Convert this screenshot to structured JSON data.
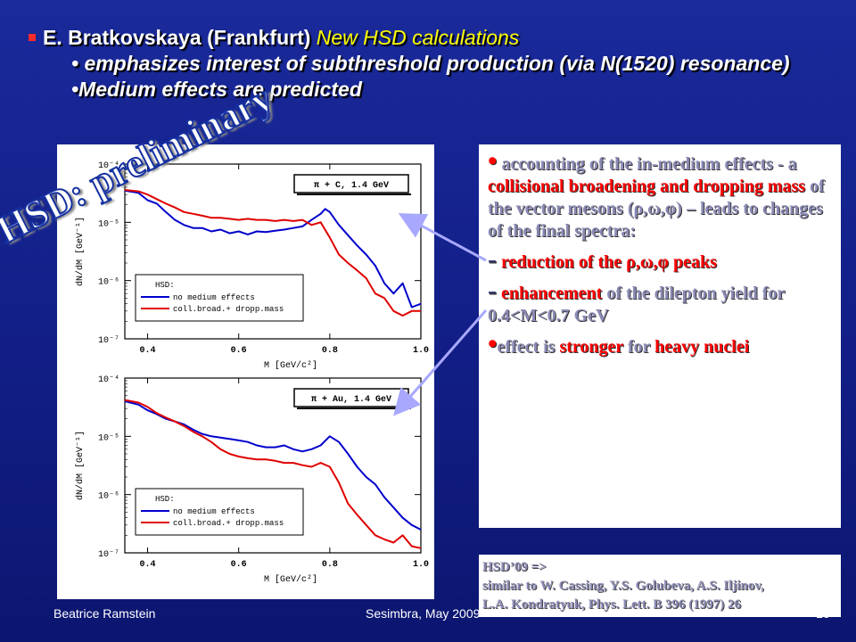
{
  "header": {
    "line1_name": "E. Bratkovskaya (Frankfurt)",
    "line1_sub": "New HSD calculations",
    "line2": "• emphasizes interest of subthreshold production (via  N(1520) resonance)",
    "line3": "•Medium effects are predicted"
  },
  "watermark": "HSD: preliminary",
  "text_panel": {
    "p1_a": "accounting of the in-medium effects - a ",
    "p1_b": "collisional broadening and dropping mass",
    "p1_c": " of the vector mesons (ρ,ω,φ) – leads to changes of the final spectra:",
    "p2_dash": "-",
    "p2": " reduction of the ρ,ω,φ peaks",
    "p3_dash": "-",
    "p3_a": " enhancement",
    "p3_b": " of the dilepton yield for 0.4<M<0.7 GeV",
    "p4_a": "effect is ",
    "p4_b": "stronger",
    "p4_c": " for ",
    "p4_d": "heavy nuclei"
  },
  "reference": {
    "line1": "HSD’09   =>",
    "line2": "similar to W. Cassing, Y.S. Golubeva, A.S. Iljinov,",
    "line3": "L.A. Kondratyuk, Phys. Lett. B 396 (1997) 26"
  },
  "footer": {
    "author": "Beatrice Ramstein",
    "event": "Sesimbra, May 2009",
    "page": "16"
  },
  "colors": {
    "no_medium": "#0000cc",
    "medium": "#e00000"
  },
  "chart_data": [
    {
      "type": "line",
      "title": "π + C, 1.4 GeV",
      "xlabel": "M [GeV/c²]",
      "ylabel": "dN/dM [GeV⁻¹]",
      "xlim": [
        0.35,
        1.0
      ],
      "ylim": [
        1e-07,
        0.0001
      ],
      "yscale": "log",
      "xticks": [
        "0.4",
        "0.6",
        "0.8",
        "1.0"
      ],
      "yticks": [
        "10⁻⁴",
        "10⁻⁵",
        "10⁻⁶",
        "10⁻⁷"
      ],
      "legend_title": "HSD:",
      "series": [
        {
          "name": "no medium effects",
          "color": "#0000cc",
          "x": [
            0.35,
            0.38,
            0.4,
            0.42,
            0.44,
            0.46,
            0.48,
            0.5,
            0.52,
            0.54,
            0.56,
            0.58,
            0.6,
            0.62,
            0.64,
            0.66,
            0.68,
            0.7,
            0.72,
            0.74,
            0.76,
            0.78,
            0.79,
            0.8,
            0.82,
            0.84,
            0.86,
            0.88,
            0.9,
            0.92,
            0.94,
            0.96,
            0.98,
            1.0
          ],
          "y": [
            3.5e-05,
            3.2e-05,
            2.4e-05,
            2.1e-05,
            1.5e-05,
            1.1e-05,
            9e-06,
            8e-06,
            8e-06,
            7e-06,
            7.5e-06,
            6.5e-06,
            7e-06,
            6.2e-06,
            7e-06,
            6.8e-06,
            7.2e-06,
            7.5e-06,
            8e-06,
            8.5e-06,
            1.1e-05,
            1.4e-05,
            1.7e-05,
            1.5e-05,
            9e-06,
            6e-06,
            4e-06,
            2.8e-06,
            1.8e-06,
            9e-07,
            6e-07,
            9e-07,
            3.5e-07,
            4e-07
          ]
        },
        {
          "name": "coll.broad.+ dropp.mass",
          "color": "#e00000",
          "x": [
            0.35,
            0.38,
            0.4,
            0.42,
            0.44,
            0.46,
            0.48,
            0.5,
            0.52,
            0.54,
            0.56,
            0.58,
            0.6,
            0.62,
            0.64,
            0.66,
            0.68,
            0.7,
            0.72,
            0.74,
            0.76,
            0.78,
            0.8,
            0.82,
            0.84,
            0.86,
            0.88,
            0.9,
            0.92,
            0.94,
            0.96,
            0.98,
            1.0
          ],
          "y": [
            3.6e-05,
            3.4e-05,
            3e-05,
            2.5e-05,
            2.1e-05,
            1.8e-05,
            1.5e-05,
            1.4e-05,
            1.3e-05,
            1.2e-05,
            1.2e-05,
            1.15e-05,
            1.1e-05,
            1.15e-05,
            1.1e-05,
            1.1e-05,
            1.05e-05,
            1.1e-05,
            1.05e-05,
            1.1e-05,
            9e-06,
            1e-05,
            5.5e-06,
            2.8e-06,
            2e-06,
            1.5e-06,
            1.1e-06,
            6e-07,
            5e-07,
            3e-07,
            2.5e-07,
            3e-07,
            3e-07
          ]
        }
      ]
    },
    {
      "type": "line",
      "title": "π + Au, 1.4 GeV",
      "xlabel": "M [GeV/c²]",
      "ylabel": "dN/dM [GeV⁻¹]",
      "xlim": [
        0.35,
        1.0
      ],
      "ylim": [
        1e-07,
        0.0001
      ],
      "yscale": "log",
      "xticks": [
        "0.4",
        "0.6",
        "0.8",
        "1.0"
      ],
      "yticks": [
        "10⁻⁴",
        "10⁻⁵",
        "10⁻⁶",
        "10⁻⁷"
      ],
      "legend_title": "HSD:",
      "series": [
        {
          "name": "no medium effects",
          "color": "#0000cc",
          "x": [
            0.35,
            0.38,
            0.4,
            0.42,
            0.44,
            0.46,
            0.48,
            0.5,
            0.52,
            0.54,
            0.56,
            0.58,
            0.6,
            0.62,
            0.64,
            0.66,
            0.68,
            0.7,
            0.72,
            0.74,
            0.76,
            0.78,
            0.8,
            0.82,
            0.84,
            0.86,
            0.88,
            0.9,
            0.92,
            0.94,
            0.96,
            0.98,
            1.0
          ],
          "y": [
            4e-05,
            3.5e-05,
            2.8e-05,
            2.4e-05,
            2e-05,
            1.8e-05,
            1.6e-05,
            1.3e-05,
            1.1e-05,
            1e-05,
            9.5e-06,
            9e-06,
            8.5e-06,
            8e-06,
            7e-06,
            6.5e-06,
            6.5e-06,
            7e-06,
            6e-06,
            5.5e-06,
            6e-06,
            7e-06,
            1e-05,
            8e-06,
            5e-06,
            3e-06,
            2e-06,
            1.5e-06,
            9e-07,
            6e-07,
            4e-07,
            3e-07,
            2.5e-07
          ]
        },
        {
          "name": "coll.broad.+ dropp.mass",
          "color": "#e00000",
          "x": [
            0.35,
            0.38,
            0.4,
            0.42,
            0.44,
            0.46,
            0.48,
            0.5,
            0.52,
            0.54,
            0.56,
            0.58,
            0.6,
            0.62,
            0.64,
            0.66,
            0.68,
            0.7,
            0.72,
            0.74,
            0.76,
            0.78,
            0.8,
            0.82,
            0.84,
            0.86,
            0.88,
            0.9,
            0.92,
            0.94,
            0.96,
            0.98,
            1.0
          ],
          "y": [
            4.2e-05,
            3.8e-05,
            3.2e-05,
            2.5e-05,
            2.1e-05,
            1.8e-05,
            1.5e-05,
            1.2e-05,
            1e-05,
            8e-06,
            6e-06,
            5e-06,
            4.5e-06,
            4.2e-06,
            4e-06,
            4e-06,
            3.8e-06,
            3.5e-06,
            3.5e-06,
            3.2e-06,
            3e-06,
            3.5e-06,
            3e-06,
            1.6e-06,
            7e-07,
            4.5e-07,
            3e-07,
            2e-07,
            1.7e-07,
            1.5e-07,
            2e-07,
            1.3e-07,
            1.2e-07
          ]
        }
      ]
    }
  ]
}
